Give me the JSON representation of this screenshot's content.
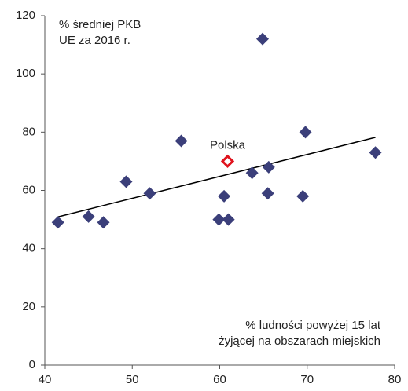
{
  "chart_data": {
    "type": "scatter",
    "y_label": [
      "% średniej PKB",
      "UE za 2016 r."
    ],
    "x_label": [
      "% ludności powyżej 15 lat",
      "żyjącej na obszarach miejskich"
    ],
    "x": [
      41.5,
      45.0,
      46.7,
      49.3,
      52.0,
      55.6,
      59.9,
      60.5,
      61.0,
      63.7,
      64.9,
      65.6,
      65.5,
      69.5,
      69.8,
      77.8
    ],
    "y": [
      49,
      51,
      49,
      63,
      59,
      77,
      50,
      58,
      50,
      66,
      112,
      68,
      59,
      58,
      80,
      73
    ],
    "color": "#3b3f7a",
    "highlight": {
      "label": "Polska",
      "x": 60.9,
      "y": 70,
      "color": "#e0141e"
    },
    "trendline": {
      "x": [
        41.5,
        77.8
      ],
      "y": [
        50.9,
        78.2
      ],
      "color": "#000000"
    },
    "xlim": [
      40,
      80
    ],
    "xticks": [
      40,
      50,
      60,
      70,
      80
    ],
    "ylim": [
      0,
      120
    ],
    "yticks": [
      0,
      20,
      40,
      60,
      80,
      100,
      120
    ]
  }
}
